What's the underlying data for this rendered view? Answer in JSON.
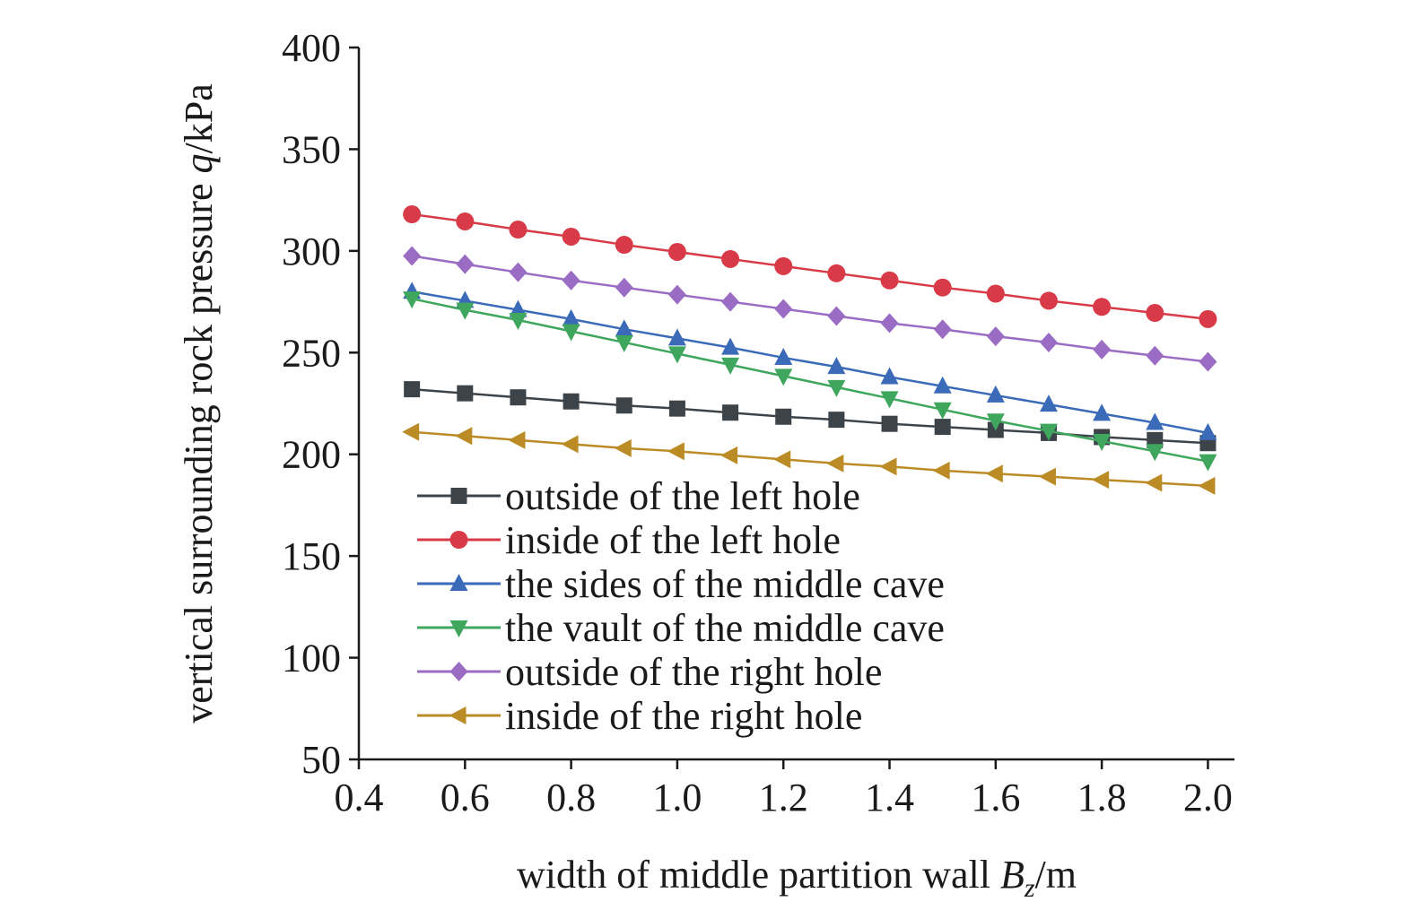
{
  "chart_data": {
    "type": "line",
    "xlabel": {
      "prefix": "width of middle partition wall ",
      "var": "B",
      "sub": "z",
      "unit": "/m"
    },
    "ylabel": {
      "prefix": "vertical surrounding rock pressure ",
      "var": "q",
      "unit": "/kPa"
    },
    "xlim": [
      0.4,
      2.05
    ],
    "ylim": [
      50,
      400
    ],
    "x_ticks": [
      "0.4",
      "0.6",
      "0.8",
      "1.0",
      "1.2",
      "1.4",
      "1.6",
      "1.8",
      "2.0"
    ],
    "y_ticks": [
      "50",
      "100",
      "150",
      "200",
      "250",
      "300",
      "350",
      "400"
    ],
    "legend_position": "lower-left",
    "x": [
      0.5,
      0.6,
      0.7,
      0.8,
      0.9,
      1.0,
      1.1,
      1.2,
      1.3,
      1.4,
      1.5,
      1.6,
      1.7,
      1.8,
      1.9,
      2.0
    ],
    "series": [
      {
        "name": "outside of the left hole",
        "color": "#3d4449",
        "marker": "square",
        "values": [
          232,
          230,
          228,
          226,
          224,
          222.5,
          220.5,
          218.5,
          217,
          215,
          213.5,
          212,
          210.5,
          208.5,
          207,
          205.5
        ]
      },
      {
        "name": "inside of the left hole",
        "color": "#d83a47",
        "marker": "circle",
        "values": [
          318,
          314.5,
          310.5,
          307,
          303,
          299.5,
          296,
          292.5,
          289,
          285.5,
          282,
          279,
          275.5,
          272.5,
          269.5,
          266.5
        ]
      },
      {
        "name": "the sides of the middle cave",
        "color": "#3a6ab8",
        "marker": "triangle-up",
        "values": [
          280,
          275.5,
          271,
          266.5,
          261.5,
          257,
          252.5,
          247.5,
          243,
          238,
          233.5,
          229,
          224.5,
          220,
          215.5,
          210.5
        ]
      },
      {
        "name": "the vault of the middle cave",
        "color": "#3fa65e",
        "marker": "triangle-down",
        "values": [
          276.5,
          271,
          266,
          260.5,
          255,
          249.5,
          244,
          238.5,
          233,
          227.5,
          222,
          216.5,
          211.5,
          206.5,
          201.5,
          196.5
        ]
      },
      {
        "name": "outside of the right hole",
        "color": "#9b6cc4",
        "marker": "diamond",
        "values": [
          297.5,
          293.5,
          289.5,
          285.5,
          282,
          278.5,
          275,
          271.5,
          268,
          264.5,
          261.5,
          258,
          255,
          251.5,
          248.5,
          245.5
        ]
      },
      {
        "name": "inside of the right hole",
        "color": "#bb8c25",
        "marker": "triangle-left",
        "values": [
          211,
          209,
          207,
          205,
          203,
          201.5,
          199.5,
          197.5,
          195.5,
          194,
          192,
          190.5,
          189,
          187.5,
          186,
          184.5
        ]
      }
    ]
  }
}
